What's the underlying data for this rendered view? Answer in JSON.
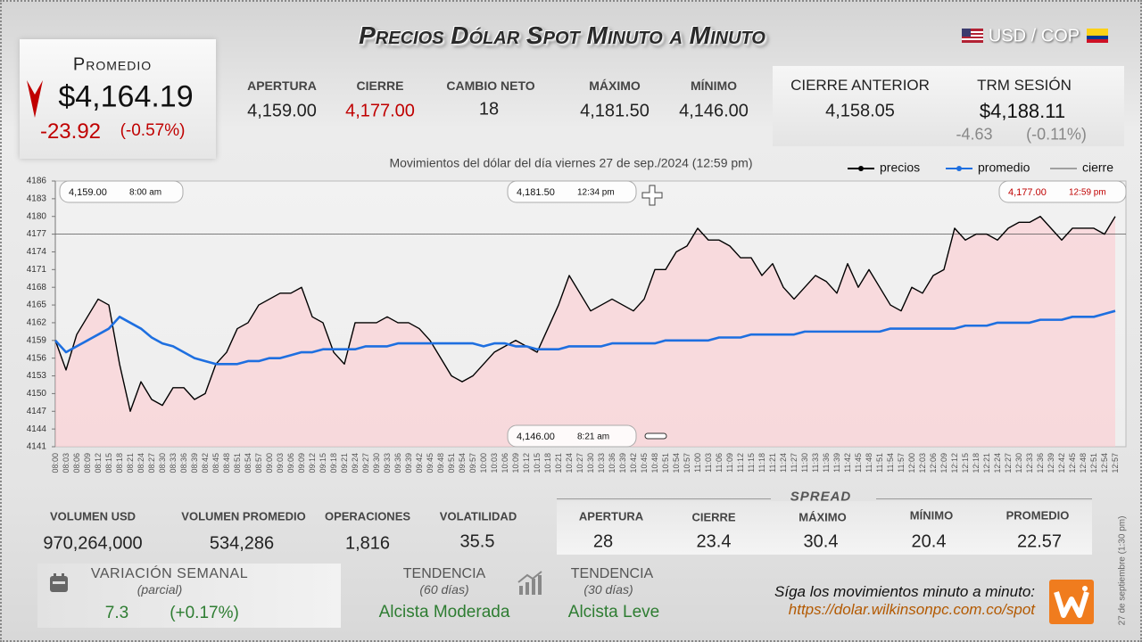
{
  "header": {
    "title": "Precios Dólar Spot Minuto a Minuto",
    "pair": "USD / COP"
  },
  "summary": {
    "label": "Promedio",
    "price": "$4,164.19",
    "change": "-23.92",
    "change_pct": "(-0.57%)"
  },
  "stats": [
    {
      "label": "APERTURA",
      "value": "4,159.00"
    },
    {
      "label": "CIERRE",
      "value": "4,177.00"
    },
    {
      "label": "CAMBIO NETO",
      "value": "18"
    },
    {
      "label": "MÁXIMO",
      "value": "4,181.50"
    },
    {
      "label": "MÍNIMO",
      "value": "4,146.00"
    }
  ],
  "previous": {
    "close_label": "CIERRE ANTERIOR",
    "close_value": "4,158.05",
    "trm_label": "TRM SESIÓN",
    "trm_value": "$4,188.11",
    "trm_change": "-4.63",
    "trm_change_pct": "(-0.11%)"
  },
  "chart_data": {
    "type": "line",
    "title": "Movimientos del dólar del día viernes 27 de sep./2024 (12:59 pm)",
    "categories": [
      "08:00",
      "08:03",
      "08:06",
      "08:09",
      "08:12",
      "08:15",
      "08:18",
      "08:21",
      "08:24",
      "08:27",
      "08:30",
      "08:33",
      "08:36",
      "08:39",
      "08:42",
      "08:45",
      "08:48",
      "08:51",
      "08:54",
      "08:57",
      "09:00",
      "09:03",
      "09:06",
      "09:09",
      "09:12",
      "09:15",
      "09:18",
      "09:21",
      "09:24",
      "09:27",
      "09:30",
      "09:33",
      "09:36",
      "09:39",
      "09:42",
      "09:45",
      "09:48",
      "09:51",
      "09:54",
      "09:57",
      "10:00",
      "10:03",
      "10:06",
      "10:09",
      "10:12",
      "10:15",
      "10:18",
      "10:21",
      "10:24",
      "10:27",
      "10:30",
      "10:33",
      "10:36",
      "10:39",
      "10:42",
      "10:45",
      "10:48",
      "10:51",
      "10:54",
      "10:57",
      "11:00",
      "11:03",
      "11:06",
      "11:09",
      "11:12",
      "11:15",
      "11:18",
      "11:21",
      "11:24",
      "11:27",
      "11:30",
      "11:33",
      "11:36",
      "11:39",
      "11:42",
      "11:45",
      "11:48",
      "11:51",
      "11:54",
      "11:57",
      "12:00",
      "12:03",
      "12:06",
      "12:09",
      "12:12",
      "12:15",
      "12:18",
      "12:21",
      "12:24",
      "12:27",
      "12:30",
      "12:33",
      "12:36",
      "12:39",
      "12:42",
      "12:45",
      "12:48",
      "12:51",
      "12:54",
      "12:57"
    ],
    "series": [
      {
        "name": "precios",
        "color": "#000000",
        "values": [
          4159,
          4154,
          4160,
          4163,
          4166,
          4165,
          4155,
          4147,
          4152,
          4149,
          4148,
          4151,
          4151,
          4149,
          4150,
          4155,
          4157,
          4161,
          4162,
          4165,
          4166,
          4167,
          4167,
          4168,
          4163,
          4162,
          4157,
          4155,
          4162,
          4162,
          4162,
          4163,
          4162,
          4162,
          4161,
          4159,
          4156,
          4153,
          4152,
          4153,
          4155,
          4157,
          4158,
          4159,
          4158,
          4157,
          4161,
          4165,
          4170,
          4167,
          4164,
          4165,
          4166,
          4165,
          4164,
          4166,
          4171,
          4171,
          4174,
          4175,
          4178,
          4176,
          4176,
          4175,
          4173,
          4173,
          4170,
          4172,
          4168,
          4166,
          4168,
          4170,
          4169,
          4167,
          4172,
          4168,
          4171,
          4168,
          4165,
          4164,
          4168,
          4167,
          4170,
          4171,
          4178,
          4176,
          4177,
          4177,
          4176,
          4178,
          4179,
          4179,
          4180,
          4178,
          4176,
          4178,
          4178,
          4178,
          4177,
          4180
        ]
      },
      {
        "name": "promedio",
        "color": "#1e6fe0",
        "values": [
          4159,
          4157,
          4158,
          4159,
          4160,
          4161,
          4163,
          4162,
          4161,
          4159.5,
          4158.5,
          4158,
          4157,
          4156,
          4155.5,
          4155,
          4155,
          4155,
          4155.5,
          4155.5,
          4156,
          4156,
          4156.5,
          4157,
          4157,
          4157.5,
          4157.5,
          4157.5,
          4157.5,
          4158,
          4158,
          4158,
          4158.5,
          4158.5,
          4158.5,
          4158.5,
          4158.5,
          4158.5,
          4158.5,
          4158.5,
          4158,
          4158.5,
          4158.5,
          4158,
          4158,
          4157.5,
          4157.5,
          4157.5,
          4158,
          4158,
          4158,
          4158,
          4158.5,
          4158.5,
          4158.5,
          4158.5,
          4158.5,
          4159,
          4159,
          4159,
          4159,
          4159,
          4159.5,
          4159.5,
          4159.5,
          4160,
          4160,
          4160,
          4160,
          4160,
          4160.5,
          4160.5,
          4160.5,
          4160.5,
          4160.5,
          4160.5,
          4160.5,
          4160.5,
          4161,
          4161,
          4161,
          4161,
          4161,
          4161,
          4161,
          4161.5,
          4161.5,
          4161.5,
          4162,
          4162,
          4162,
          4162,
          4162.5,
          4162.5,
          4162.5,
          4163,
          4163,
          4163,
          4163.5,
          4164
        ]
      }
    ],
    "reference": {
      "name": "cierre",
      "value": 4177,
      "color": "#555555"
    },
    "ylim": [
      4141,
      4186
    ],
    "yticks": [
      4141,
      4144,
      4147,
      4150,
      4153,
      4156,
      4159,
      4162,
      4165,
      4168,
      4171,
      4174,
      4177,
      4180,
      4183,
      4186
    ],
    "annotations": [
      {
        "price": "4,159.00",
        "time": "8:00 am"
      },
      {
        "price": "4,181.50",
        "time": "12:34 pm"
      },
      {
        "price": "4,177.00",
        "time": "12:59 pm"
      },
      {
        "price": "4,146.00",
        "time": "8:21 am"
      }
    ]
  },
  "volume": [
    {
      "label": "VOLUMEN USD",
      "value": "970,264,000"
    },
    {
      "label": "VOLUMEN PROMEDIO",
      "value": "534,286"
    },
    {
      "label": "OPERACIONES",
      "value": "1,816"
    },
    {
      "label": "VOLATILIDAD",
      "value": "35.5"
    }
  ],
  "spread": {
    "title": "SPREAD",
    "items": [
      {
        "label": "APERTURA",
        "value": "28"
      },
      {
        "label": "CIERRE",
        "value": "23.4"
      },
      {
        "label": "MÁXIMO",
        "value": "30.4"
      },
      {
        "label": "MÍNIMO",
        "value": "20.4"
      },
      {
        "label": "PROMEDIO",
        "value": "22.57"
      }
    ]
  },
  "weekly": {
    "label": "VARIACIÓN SEMANAL",
    "note": "(parcial)",
    "value": "7.3",
    "pct": "(+0.17%)"
  },
  "trends": [
    {
      "label": "TENDENCIA",
      "note": "(60 días)",
      "value": "Alcista Moderada"
    },
    {
      "label": "TENDENCIA",
      "note": "(30 días)",
      "value": "Alcista Leve"
    }
  ],
  "footer": {
    "cta": "Síga los movimientos minuto a minuto:",
    "url": "https://dolar.wilkinsonpc.com.co/spot",
    "stamp": "27 de septiembre (1:30 pm)"
  }
}
